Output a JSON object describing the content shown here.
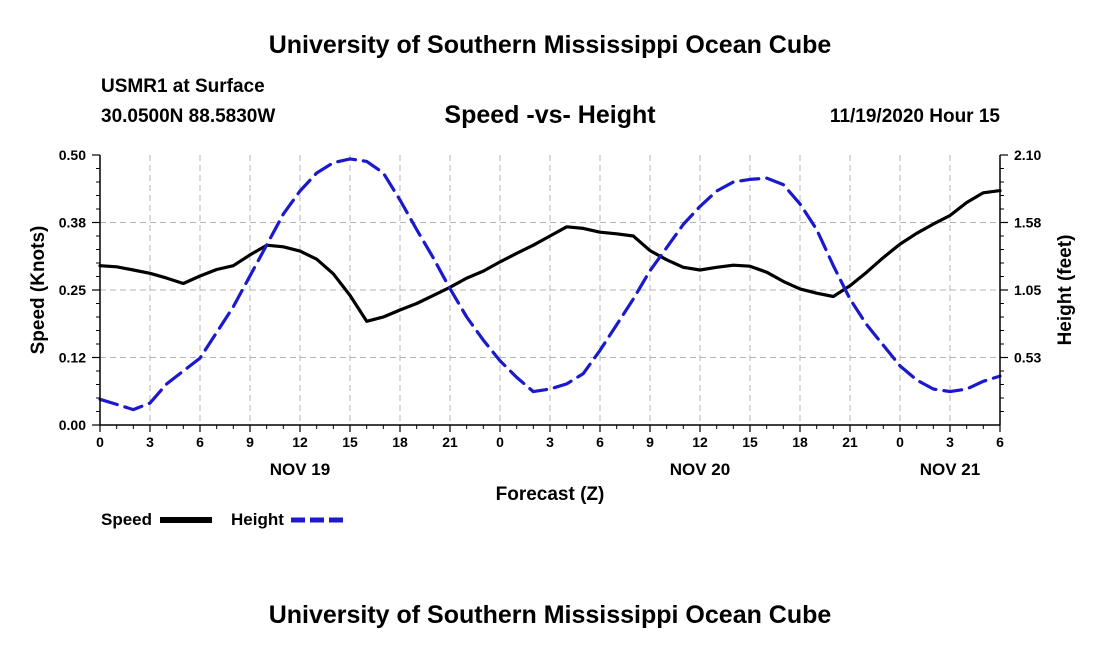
{
  "header": {
    "main_title": "University of Southern Mississippi Ocean Cube",
    "station": "USMR1 at Surface",
    "coordinates": "30.0500N 88.5830W",
    "date_hour": "11/19/2020 Hour 15"
  },
  "footer": {
    "title": "University of Southern Mississippi Ocean Cube"
  },
  "legend": {
    "speed_label": "Speed",
    "height_label": "Height"
  },
  "colors": {
    "speed": "#000000",
    "height": "#1a1acc",
    "grid": "#b4b4b4"
  },
  "chart_data": {
    "type": "line",
    "title": "Speed -vs- Height",
    "xlabel": "Forecast (Z)",
    "ylabel": "Speed (Knots)",
    "y2label": "Height (feet)",
    "xlim": [
      0,
      54
    ],
    "ylim": [
      0,
      0.5
    ],
    "y2lim": [
      0,
      2.1
    ],
    "x_ticks": [
      0,
      3,
      6,
      9,
      12,
      15,
      18,
      21,
      24,
      27,
      30,
      33,
      36,
      39,
      42,
      45,
      48,
      51,
      54
    ],
    "x_tick_labels": [
      "0",
      "3",
      "6",
      "9",
      "12",
      "15",
      "18",
      "21",
      "0",
      "3",
      "6",
      "9",
      "12",
      "15",
      "18",
      "21",
      "0",
      "3",
      "6"
    ],
    "y_ticks": [
      0,
      0.125,
      0.25,
      0.375,
      0.5
    ],
    "y_tick_labels": [
      "0.00",
      "0.12",
      "0.25",
      "0.38",
      "0.50"
    ],
    "y2_ticks": [
      0.525,
      1.05,
      1.575,
      2.1
    ],
    "y2_tick_labels": [
      "0.53",
      "1.05",
      "1.58",
      "2.10"
    ],
    "day_labels": [
      {
        "x": 12,
        "label": "NOV 19"
      },
      {
        "x": 36,
        "label": "NOV 20"
      },
      {
        "x": 51,
        "label": "NOV 21"
      }
    ],
    "grid": true,
    "series": [
      {
        "name": "Speed",
        "axis": "left",
        "style": "solid",
        "x": [
          0,
          1,
          2,
          3,
          4,
          5,
          6,
          7,
          8,
          9,
          10,
          11,
          12,
          13,
          14,
          15,
          16,
          17,
          18,
          19,
          20,
          21,
          22,
          23,
          24,
          25,
          26,
          27,
          28,
          29,
          30,
          31,
          32,
          33,
          34,
          35,
          36,
          37,
          38,
          39,
          40,
          41,
          42,
          43,
          44,
          45,
          46,
          47,
          48,
          49,
          50,
          51,
          52,
          53,
          54
        ],
        "values": [
          0.295,
          0.293,
          0.287,
          0.281,
          0.272,
          0.262,
          0.276,
          0.288,
          0.295,
          0.315,
          0.333,
          0.33,
          0.322,
          0.307,
          0.28,
          0.24,
          0.192,
          0.2,
          0.213,
          0.225,
          0.24,
          0.255,
          0.272,
          0.285,
          0.302,
          0.318,
          0.333,
          0.35,
          0.367,
          0.364,
          0.357,
          0.354,
          0.35,
          0.323,
          0.306,
          0.292,
          0.287,
          0.292,
          0.296,
          0.294,
          0.283,
          0.266,
          0.252,
          0.244,
          0.238,
          0.258,
          0.283,
          0.31,
          0.335,
          0.355,
          0.372,
          0.388,
          0.412,
          0.43,
          0.434
        ]
      },
      {
        "name": "Height",
        "axis": "right",
        "style": "dashed",
        "x": [
          0,
          1,
          2,
          3,
          4,
          5,
          6,
          7,
          8,
          9,
          10,
          11,
          12,
          13,
          14,
          15,
          16,
          17,
          18,
          19,
          20,
          21,
          22,
          23,
          24,
          25,
          26,
          27,
          28,
          29,
          30,
          31,
          32,
          33,
          34,
          35,
          36,
          37,
          38,
          39,
          40,
          41,
          42,
          43,
          44,
          45,
          46,
          47,
          48,
          49,
          50,
          51,
          52,
          53,
          54
        ],
        "values": [
          0.2,
          0.16,
          0.12,
          0.17,
          0.32,
          0.42,
          0.52,
          0.72,
          0.92,
          1.16,
          1.4,
          1.64,
          1.82,
          1.96,
          2.04,
          2.07,
          2.05,
          1.96,
          1.75,
          1.52,
          1.3,
          1.06,
          0.84,
          0.66,
          0.5,
          0.37,
          0.26,
          0.28,
          0.32,
          0.4,
          0.58,
          0.78,
          0.98,
          1.2,
          1.38,
          1.56,
          1.7,
          1.82,
          1.89,
          1.91,
          1.92,
          1.87,
          1.72,
          1.52,
          1.24,
          0.98,
          0.78,
          0.62,
          0.46,
          0.35,
          0.28,
          0.26,
          0.28,
          0.34,
          0.38
        ]
      }
    ]
  }
}
